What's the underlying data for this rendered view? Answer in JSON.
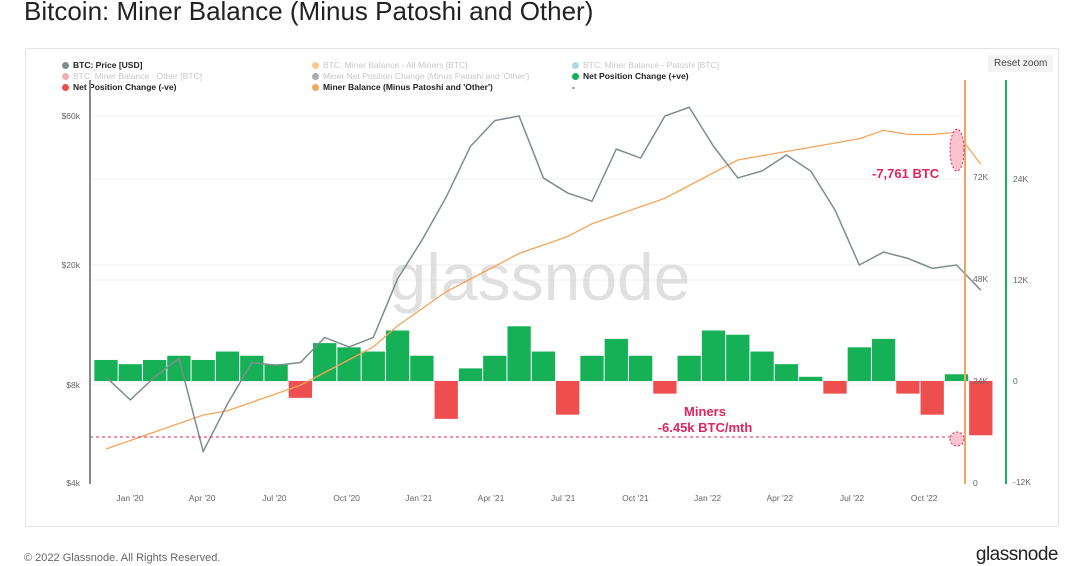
{
  "title": "Bitcoin: Miner Balance (Minus Patoshi and Other)",
  "reset_zoom": "Reset zoom",
  "footer": "© 2022 Glassnode. All Rights Reserved.",
  "logo": "glassnode",
  "watermark": "glassnode",
  "legend": [
    {
      "label": "BTC: Price [USD]",
      "color": "#7f8c8d",
      "active": true
    },
    {
      "label": "BTC: Miner Balance - All Miners [BTC]",
      "color": "#f7931a",
      "active": false
    },
    {
      "label": "BTC: Miner Balance - Patoshi [BTC]",
      "color": "#5fb3d4",
      "active": false
    },
    {
      "label": "BTC: Miner Balance - Other [BTC]",
      "color": "#e35d6a",
      "active": false
    },
    {
      "label": "Miner Net Position Change (Minus Patoshi and 'Other')",
      "color": "#555c66",
      "active": false
    },
    {
      "label": "Net Position Change (+ve)",
      "color": "#16b157",
      "active": true
    },
    {
      "label": "Net Position Change (-ve)",
      "color": "#ef4e4e",
      "active": true
    },
    {
      "label": "Miner Balance (Minus Patoshi and 'Other')",
      "color": "#f4a55c",
      "active": true
    },
    {
      "label": "-",
      "color": "",
      "active": true
    }
  ],
  "annotations": {
    "balance_drop": "-7,761 BTC",
    "miners_line1": "Miners",
    "miners_line2": "-6.45k BTC/mth"
  },
  "chart_data": {
    "type": "line",
    "title": "Bitcoin: Miner Balance (Minus Patoshi and Other)",
    "x_ticks": [
      "Jan '20",
      "Apr '20",
      "Jul '20",
      "Oct '20",
      "Jan '21",
      "Apr '21",
      "Jul '21",
      "Oct '21",
      "Jan '22",
      "Apr '22",
      "Jul '22",
      "Oct '22"
    ],
    "y_left": {
      "label": "BTC Price [USD]",
      "scale": "log",
      "ticks": [
        "$4k",
        "$8k",
        "$20k",
        "$60k"
      ],
      "tick_values": [
        4000,
        8000,
        20000,
        60000
      ]
    },
    "y_right_balance": {
      "ticks": [
        "0",
        "24K",
        "48K",
        "72K"
      ],
      "tick_values": [
        0,
        24000,
        48000,
        72000
      ]
    },
    "y_right_net": {
      "ticks": [
        "-12K",
        "0",
        "12K",
        "24K"
      ],
      "tick_values": [
        -12000,
        0,
        12000,
        24000
      ]
    },
    "months": [
      "2019-11",
      "2019-12",
      "2020-01",
      "2020-02",
      "2020-03",
      "2020-04",
      "2020-05",
      "2020-06",
      "2020-07",
      "2020-08",
      "2020-09",
      "2020-10",
      "2020-11",
      "2020-12",
      "2021-01",
      "2021-02",
      "2021-03",
      "2021-04",
      "2021-05",
      "2021-06",
      "2021-07",
      "2021-08",
      "2021-09",
      "2021-10",
      "2021-11",
      "2021-12",
      "2022-01",
      "2022-02",
      "2022-03",
      "2022-04",
      "2022-05",
      "2022-06",
      "2022-07",
      "2022-08",
      "2022-09",
      "2022-10",
      "2022-11"
    ],
    "series": [
      {
        "name": "BTC: Price [USD]",
        "values": [
          8500,
          7200,
          8500,
          9800,
          5000,
          7000,
          9500,
          9300,
          9500,
          11500,
          10700,
          11500,
          18000,
          24000,
          33000,
          48000,
          58000,
          60000,
          38000,
          34000,
          32000,
          47000,
          44000,
          60000,
          64000,
          48000,
          38000,
          40000,
          45000,
          40000,
          30000,
          20000,
          22000,
          21000,
          19500,
          20000,
          16500
        ]
      },
      {
        "name": "Miner Balance (Minus Patoshi and 'Other')",
        "values": [
          8000,
          10000,
          12000,
          14000,
          16000,
          17000,
          19000,
          21000,
          23000,
          26000,
          29000,
          32000,
          37000,
          41000,
          45000,
          48000,
          51000,
          54000,
          56000,
          58000,
          61000,
          63000,
          65000,
          67000,
          70000,
          73000,
          76000,
          77000,
          78000,
          79000,
          80000,
          81000,
          83000,
          82000,
          82000,
          82500,
          75000
        ]
      },
      {
        "name": "Net Position Change",
        "values": [
          2500,
          2000,
          2500,
          3000,
          2500,
          3500,
          3000,
          2000,
          -2000,
          4500,
          4000,
          3500,
          6000,
          3000,
          -4500,
          1500,
          3000,
          6500,
          3500,
          -4000,
          3000,
          5000,
          3000,
          -1500,
          3000,
          6000,
          5500,
          3500,
          2000,
          500,
          -1500,
          4000,
          5000,
          -1500,
          -4000,
          800,
          -6450
        ]
      }
    ]
  }
}
